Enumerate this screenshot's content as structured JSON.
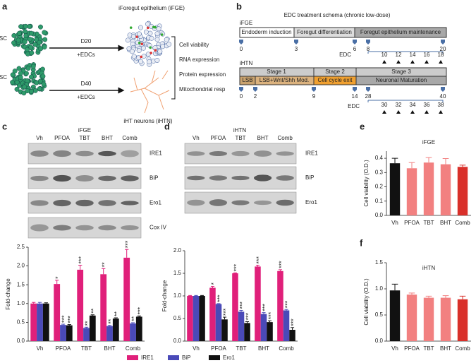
{
  "panels": {
    "a": {
      "letter": "a",
      "start_1": "iPSC",
      "start_2": "iPSC",
      "arrow_1": [
        "D20",
        "+EDCs"
      ],
      "arrow_2": [
        "D40",
        "+EDCs"
      ],
      "product_1": "iForegut epithelium (iFGE)",
      "product_2": "iHT neurons (iHTN)",
      "assays": [
        "Cell viability",
        "RNA expression",
        "Protein expression",
        "Mitochondrial resp"
      ]
    },
    "b": {
      "letter": "b",
      "title": "EDC treatment schema (chronic low-dose)",
      "ifge": {
        "label": "iFGE",
        "stages": [
          "Endoderm induction",
          "Foregut differentiation",
          "Foregut epithelium maintenance"
        ],
        "days": [
          0,
          3,
          6,
          8,
          20
        ],
        "edc_label": "EDC",
        "edc_days": [
          10,
          12,
          14,
          16,
          18
        ]
      },
      "ihtn": {
        "label": "iHTN",
        "stages": [
          "Stage 1",
          "Stage 2",
          "Stage 3"
        ],
        "steps": [
          "LSB",
          "LSB+Wnt/Shh Mod.",
          "Cell cycle exit",
          "Neuronal Maturation"
        ],
        "days": [
          0,
          2,
          9,
          14,
          28,
          40
        ],
        "edc_label": "EDC",
        "edc_days": [
          30,
          32,
          34,
          36,
          38
        ]
      }
    },
    "c": {
      "letter": "c",
      "header": "iFGE",
      "lanes": [
        "Vh",
        "PFOA",
        "TBT",
        "BHT",
        "Comb"
      ],
      "proteins": [
        "IRE1",
        "BiP",
        "Ero1",
        "Cox IV"
      ]
    },
    "d": {
      "letter": "d",
      "header": "iHTN",
      "lanes": [
        "Vh",
        "PFOA",
        "TBT",
        "BHT",
        "Comb"
      ],
      "proteins": [
        "IRE1",
        "BiP",
        "Ero1"
      ]
    },
    "e": {
      "letter": "e"
    },
    "f": {
      "letter": "f"
    }
  },
  "chart_data": [
    {
      "type": "bar",
      "ylabel": "Fold-change",
      "categories": [
        "Vh",
        "PFOA",
        "TBT",
        "BHT",
        "Comb"
      ],
      "series": [
        {
          "name": "IRE1",
          "color": "#e0207a",
          "values": [
            1.0,
            1.52,
            1.9,
            1.78,
            2.22
          ],
          "errors": [
            0.03,
            0.1,
            0.12,
            0.15,
            0.22
          ],
          "significance": [
            null,
            "*",
            "***",
            "**",
            "***"
          ]
        },
        {
          "name": "BiP",
          "color": "#4a4ab8",
          "values": [
            1.0,
            0.43,
            0.35,
            0.4,
            0.47
          ],
          "errors": [
            0.03,
            0.02,
            0.02,
            0.02,
            0.02
          ],
          "significance": [
            null,
            "***",
            "**",
            "**",
            "**"
          ]
        },
        {
          "name": "Ero1",
          "color": "#111111",
          "values": [
            1.0,
            0.42,
            0.68,
            0.6,
            0.65
          ],
          "errors": [
            0.02,
            0.02,
            0.02,
            0.02,
            0.02
          ],
          "significance": [
            null,
            "***",
            "**",
            "**",
            "***"
          ]
        }
      ],
      "ylim": [
        0,
        2.5
      ],
      "yticks": [
        {
          "value": 0,
          "label": "0.0"
        },
        {
          "value": 0.5,
          "label": "0.5"
        },
        {
          "value": 1,
          "label": "1.0"
        },
        {
          "value": 1.5,
          "label": "1.5"
        },
        {
          "value": 2,
          "label": "2.0"
        },
        {
          "value": 2.5,
          "label": "2.5"
        }
      ]
    },
    {
      "type": "bar",
      "ylabel": "Fold-change",
      "categories": [
        "Vh",
        "PFOA",
        "TBT",
        "BHT",
        "Comb"
      ],
      "series": [
        {
          "color": "#e0207a",
          "values": [
            1.0,
            1.18,
            1.5,
            1.65,
            1.55
          ],
          "errors": [
            0.01,
            0.03,
            0.01,
            0.03,
            0.03
          ],
          "significance": [
            null,
            "*",
            "***",
            "***",
            "***"
          ]
        },
        {
          "color": "#4a4ab8",
          "values": [
            1.0,
            0.82,
            0.65,
            0.6,
            0.68
          ],
          "errors": [
            0.01,
            0.01,
            0.03,
            0.03,
            0.02
          ],
          "significance": [
            null,
            "***",
            "***",
            "***",
            "***"
          ]
        },
        {
          "color": "#111111",
          "values": [
            1.0,
            0.48,
            0.4,
            0.42,
            0.25
          ],
          "errors": [
            0.01,
            0.05,
            0.03,
            0.03,
            0.05
          ],
          "significance": [
            null,
            "***",
            "***",
            "***",
            "***"
          ]
        }
      ],
      "ylim": [
        0,
        2
      ],
      "yticks": [
        {
          "value": 0,
          "label": "0.0"
        },
        {
          "value": 0.5,
          "label": "0.5"
        },
        {
          "value": 1,
          "label": "1.0"
        },
        {
          "value": 1.5,
          "label": "1.5"
        },
        {
          "value": 2,
          "label": "2.0"
        }
      ]
    },
    {
      "type": "bar",
      "title": "iFGE",
      "ylabel": "Cell viability (O.D.)",
      "categories": [
        "Vh",
        "PFOA",
        "TBT",
        "BHT",
        "Comb"
      ],
      "series": [
        {
          "colors": [
            "#111111",
            "#f28080",
            "#f28080",
            "#f28080",
            "#d9302a"
          ],
          "values": [
            0.365,
            0.33,
            0.37,
            0.358,
            0.34
          ],
          "errors": [
            0.035,
            0.04,
            0.035,
            0.04,
            0.012
          ]
        }
      ],
      "ylim": [
        0,
        0.45
      ],
      "yticks": [
        {
          "value": 0,
          "label": "0.0"
        },
        0.1,
        0.2,
        0.3,
        0.4
      ]
    },
    {
      "type": "bar",
      "title": "iHTN",
      "ylabel": "Cell viability (O.D.)",
      "categories": [
        "Vh",
        "PFOA",
        "TBT",
        "BHT",
        "Comb"
      ],
      "series": [
        {
          "colors": [
            "#111111",
            "#f28080",
            "#f28080",
            "#f28080",
            "#d9302a"
          ],
          "values": [
            0.97,
            0.89,
            0.83,
            0.83,
            0.8
          ],
          "errors": [
            0.12,
            0.03,
            0.03,
            0.04,
            0.06
          ]
        }
      ],
      "ylim": [
        0,
        1.5
      ],
      "yticks": [
        {
          "value": 0,
          "label": "0.0"
        },
        {
          "value": 0.5,
          "label": "0.5"
        },
        {
          "value": 1,
          "label": "1.0"
        },
        {
          "value": 1.5,
          "label": "1.5"
        }
      ]
    }
  ]
}
